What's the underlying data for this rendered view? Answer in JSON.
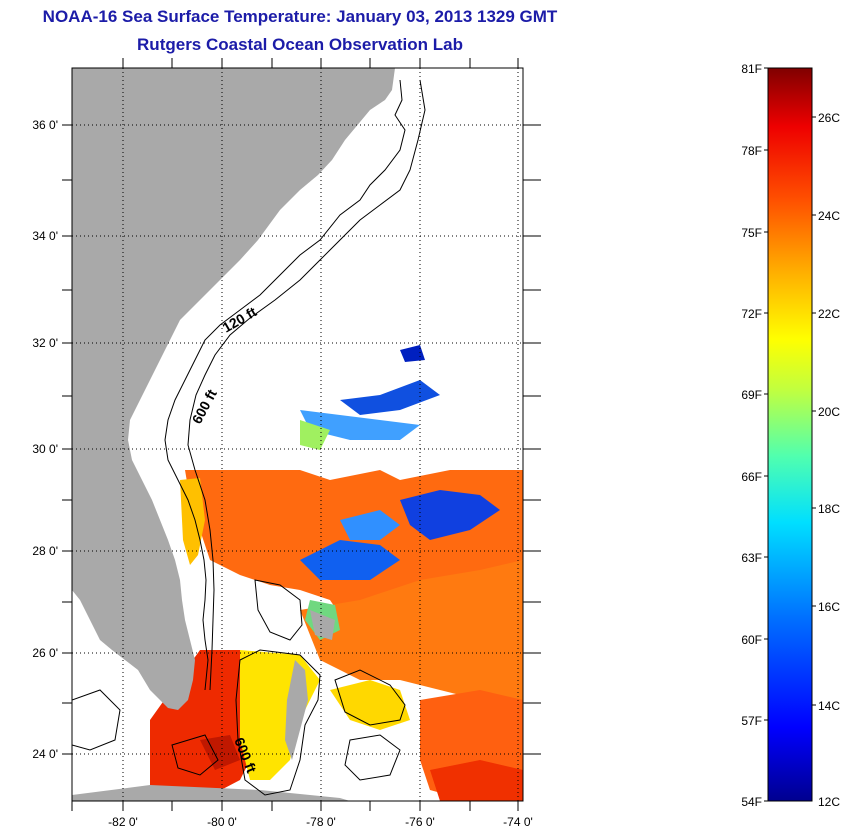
{
  "header": {
    "title": "NOAA-16 Sea Surface Temperature:  January 03, 2013 1329 GMT",
    "subtitle": "Rutgers Coastal Ocean Observation Lab"
  },
  "map": {
    "lat_labels": [
      "36 0'",
      "34 0'",
      "32 0'",
      "30 0'",
      "28 0'",
      "26 0'",
      "24 0'"
    ],
    "lon_labels": [
      "-82 0'",
      "-80 0'",
      "-78 0'",
      "-76 0'",
      "-74 0'"
    ],
    "contour_labels": [
      "120 ft",
      "600 ft",
      "600 ft"
    ],
    "colors": {
      "land": "#a9a9a9",
      "cloud_or_nodata": "#ffffff"
    }
  },
  "colorbar": {
    "fahrenheit_labels": [
      "81F",
      "78F",
      "75F",
      "72F",
      "69F",
      "66F",
      "63F",
      "60F",
      "57F",
      "54F"
    ],
    "celsius_labels": [
      "26C",
      "24C",
      "22C",
      "20C",
      "18C",
      "16C",
      "14C",
      "12C"
    ],
    "colormap": [
      "#00008f",
      "#0000ff",
      "#0070ff",
      "#00dfff",
      "#50ffaf",
      "#c0ff40",
      "#ffff00",
      "#ffb000",
      "#ff5000",
      "#ee0000",
      "#800000"
    ]
  }
}
